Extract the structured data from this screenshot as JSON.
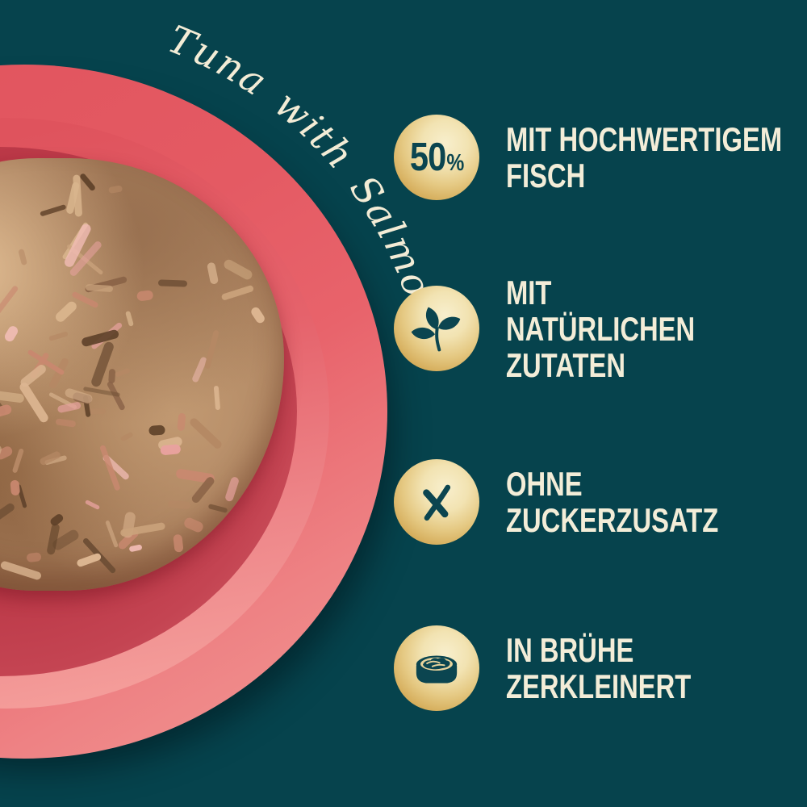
{
  "canvas": {
    "background_color": "#06434d"
  },
  "plate": {
    "label": "Tuna with Salmon",
    "label_color": "#f3ecd6",
    "rim_color": "#e4565f",
    "rim_highlight_color": "#f19390",
    "well_color": "#bb3847",
    "food_base_color": "#a87e5c",
    "food_shred_colors": [
      "#caa37c",
      "#8a6347",
      "#5e4129",
      "#e8a29f",
      "#f2bdb6",
      "#d8b48c",
      "#6f4f35",
      "#b58864",
      "#c9886f",
      "#dcb691"
    ]
  },
  "features": {
    "gold_light": "#f8efcd",
    "gold_dark": "#bf8c38",
    "icon_glyph_color": "#0b4550",
    "text_color": "#f3edd8",
    "items": [
      {
        "icon": "badge-50-percent",
        "badge_value": "50",
        "badge_unit": "%",
        "lines": [
          "MIT HOCHWERTIGEM",
          "FISCH"
        ]
      },
      {
        "icon": "leaves-icon",
        "lines": [
          "MIT",
          "NATÜRLICHEN",
          "ZUTATEN"
        ]
      },
      {
        "icon": "cross-icon",
        "lines": [
          "OHNE",
          "ZUCKERZUSATZ"
        ]
      },
      {
        "icon": "food-bowl-icon",
        "lines": [
          "IN BRÜHE",
          "ZERKLEINERT"
        ]
      }
    ]
  }
}
